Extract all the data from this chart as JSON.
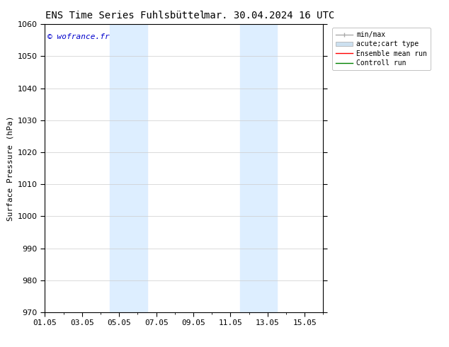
{
  "title_left": "ENS Time Series Fuhlsbüttel",
  "title_right": "mar. 30.04.2024 16 UTC",
  "ylabel": "Surface Pressure (hPa)",
  "ylim": [
    970,
    1060
  ],
  "yticks": [
    970,
    980,
    990,
    1000,
    1010,
    1020,
    1030,
    1040,
    1050,
    1060
  ],
  "xtick_labels": [
    "01.05",
    "03.05",
    "05.05",
    "07.05",
    "09.05",
    "11.05",
    "13.05",
    "15.05"
  ],
  "xtick_positions": [
    0,
    2,
    4,
    6,
    8,
    10,
    12,
    14
  ],
  "xlim": [
    0,
    15
  ],
  "shaded_regions": [
    {
      "xmin": 3.5,
      "xmax": 5.5,
      "color": "#ddeeff"
    },
    {
      "xmin": 10.5,
      "xmax": 12.5,
      "color": "#ddeeff"
    }
  ],
  "watermark": "© wofrance.fr",
  "watermark_color": "#0000cc",
  "legend_entries": [
    {
      "label": "min/max",
      "color": "#aaaaaa",
      "lw": 1.0
    },
    {
      "label": "acute;cart type",
      "facecolor": "#cce0f0",
      "edgecolor": "#aaaaaa"
    },
    {
      "label": "Ensemble mean run",
      "color": "red",
      "lw": 1.0
    },
    {
      "label": "Controll run",
      "color": "green",
      "lw": 1.0
    }
  ],
  "bg_color": "#ffffff",
  "grid_color": "#cccccc",
  "spine_color": "#000000",
  "title_fontsize": 10,
  "axis_fontsize": 8,
  "tick_fontsize": 8,
  "watermark_fontsize": 8
}
